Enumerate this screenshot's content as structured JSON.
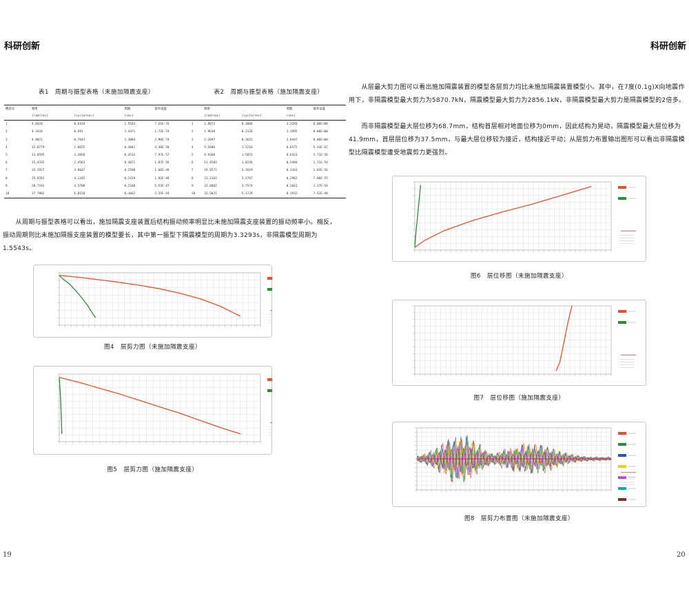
{
  "header": {
    "left": "科研创新",
    "right": "科研创新"
  },
  "page_numbers": {
    "left": "19",
    "right": "20"
  },
  "table1": {
    "caption": "表1　周期与振型表格（未施加隔震支座）",
    "header1": [
      "模态号",
      "频率",
      "",
      "周期",
      "容许误差"
    ],
    "header2": [
      "",
      "(rad/sec)",
      "(cycle/sec)",
      "(sec)",
      ""
    ],
    "rows": [
      [
        "1",
        "4.0424",
        "0.6434",
        "1.5543",
        "7.61E-76"
      ],
      [
        "2",
        "4.3418",
        "0.691",
        "1.4471",
        "1.72E-74"
      ],
      [
        "3",
        "4.8021",
        "0.7643",
        "1.3084",
        "2.90E-74"
      ],
      [
        "4",
        "12.0779",
        "2.0655",
        "0.4841",
        "4.30E-50"
      ],
      [
        "5",
        "13.8595",
        "2.2058",
        "0.4533",
        "7.97E-57"
      ],
      [
        "6",
        "15.4335",
        "2.4563",
        "0.4071",
        "1.07E-56"
      ],
      [
        "7",
        "24.2927",
        "3.8647",
        "0.2588",
        "1.66E-49"
      ],
      [
        "8",
        "25.9781",
        "4.1345",
        "0.2419",
        "1.92E-48"
      ],
      [
        "9",
        "28.7191",
        "4.5708",
        "0.2188",
        "5.53E-47"
      ],
      [
        "10",
        "37.7982",
        "6.0158",
        "0.1662",
        "2.55E-44"
      ]
    ]
  },
  "table2": {
    "caption": "表2　周期与振型表格（施加隔震支座）",
    "header1": [
      "",
      "频率",
      "",
      "周期",
      "容许误差"
    ],
    "header2": [
      "",
      "(rad/sec)",
      "(cycle/sec)",
      "(sec)",
      ""
    ],
    "rows": [
      [
        "1",
        "1.8872",
        "0.3004",
        "3.3293",
        "0.00E+00"
      ],
      [
        "2",
        "1.9638",
        "0.3126",
        "3.1995",
        "0.00E+00"
      ],
      [
        "3",
        "2.2697",
        "0.3615",
        "2.8447",
        "0.00E+00"
      ],
      [
        "4",
        "9.5606",
        "1.5216",
        "0.6572",
        "5.34E-67"
      ],
      [
        "5",
        "9.9368",
        "1.5815",
        "0.6323",
        "1.71E-56"
      ],
      [
        "6",
        "11.4583",
        "1.8236",
        "0.5484",
        "1.71E-54"
      ],
      [
        "7",
        "19.9571",
        "3.1619",
        "0.3163",
        "1.83E-56"
      ],
      [
        "8",
        "21.2162",
        "3.3767",
        "0.2962",
        "7.80E-55"
      ],
      [
        "9",
        "23.8082",
        "3.7574",
        "0.2661",
        "1.17E-54"
      ],
      [
        "10",
        "32.5021",
        "5.1729",
        "0.1933",
        "7.52E-49"
      ]
    ]
  },
  "left_paragraph": "　　从周期与振型表格可以看出，施加隔震支座装置后结构振动频率明显比未施加隔震支座装置的振动频率小。相反，振动周期则比未施加隔振支座装置的模型要长，其中第一振型下隔震模型的周期为3.3293s，非隔震模型周期为1.5543s。",
  "right_paragraph_1": "　　从层最大剪力图可以看出施加隔震装置的模型各层剪力均比未施加隔震装置模型小。其中，在7度(0.1g)X向地震作用下，非隔震模型最大剪力为5870.7kN，隔震模型最大剪力为2856.1kN，非隔震模型最大剪力是隔震模型的2倍多。",
  "right_paragraph_2": "　　而非隔震模型最大层位移为68.7mm，结构首层相对地面位移为0mm，因此结构为晃动，隔震模型最大层位移为41.9mm，首层层位移为37.5mm，与最大层位移较为接近，结构接近平动；从层剪力布置输出图形可以看出非隔震模型比隔震模型遭受地震剪力更强烈。",
  "figures": {
    "fig4": {
      "caption": "图4　层剪力图（未施加隔震支座）"
    },
    "fig5": {
      "caption": "图5　层剪力图（施加隔震支座）"
    },
    "fig6": {
      "caption": "图6　层位移图（未施加隔震支座）"
    },
    "fig7": {
      "caption": "图7　层位移图（施加隔震支座）"
    },
    "fig8": {
      "caption": "图8　层剪力布置图（未施加隔震支座）"
    }
  },
  "chart_data": [
    {
      "id": "fig4",
      "type": "line",
      "series_colors": [
        "#e8502a",
        "#2e8b3a"
      ],
      "legend_position": "right",
      "series": [
        {
          "x": [
            0,
            10,
            20,
            30,
            40,
            50,
            60,
            70,
            80,
            85,
            90
          ],
          "y": [
            10,
            9.6,
            9.1,
            8.6,
            8.0,
            7.3,
            6.4,
            5.3,
            3.8,
            2.8,
            1.8
          ]
        },
        {
          "x": [
            0,
            2,
            5,
            8,
            11,
            14,
            16,
            18
          ],
          "y": [
            10,
            9.2,
            8.3,
            7.0,
            5.6,
            4.0,
            2.7,
            1.5
          ]
        }
      ]
    },
    {
      "id": "fig5",
      "type": "line",
      "series_colors": [
        "#e8502a",
        "#2e8b3a"
      ],
      "legend_position": "right",
      "series": [
        {
          "x": [
            0,
            10,
            20,
            30,
            40,
            50,
            60,
            70,
            80,
            90
          ],
          "y": [
            10,
            9.2,
            8.3,
            7.4,
            6.4,
            5.4,
            4.4,
            3.3,
            2.2,
            1.2
          ]
        },
        {
          "x": [
            0,
            0.6,
            1.0,
            1.3
          ],
          "y": [
            10,
            7,
            4,
            1.2
          ]
        }
      ]
    },
    {
      "id": "fig6",
      "type": "line",
      "series_colors": [
        "#e8502a",
        "#2e8b3a"
      ],
      "legend_position": "right",
      "series": [
        {
          "x": [
            0,
            5,
            15,
            30,
            45,
            60,
            70,
            80,
            90
          ],
          "y": [
            0.4,
            1.5,
            3.0,
            4.6,
            5.9,
            7.1,
            8.0,
            8.9,
            9.8
          ]
        },
        {
          "x": [
            0,
            0.7,
            1.5,
            2.3,
            3.0
          ],
          "y": [
            0.5,
            3,
            5.5,
            8,
            10
          ]
        }
      ]
    },
    {
      "id": "fig7",
      "type": "line",
      "series_colors": [
        "#e8502a",
        "#2e8b3a"
      ],
      "legend_position": "right",
      "series": [
        {
          "x": [
            72,
            74,
            76,
            78,
            80
          ],
          "y": [
            0.5,
            2,
            5,
            8,
            10.5
          ]
        }
      ]
    },
    {
      "id": "fig8",
      "type": "line",
      "legend_position": "right",
      "series_colors": [
        "#e8502a",
        "#2e8b3a",
        "#2255cc",
        "#e6d21c",
        "#c93ec9",
        "#18a8a8",
        "#8a2b2b",
        "#ff9a3c"
      ]
    }
  ]
}
